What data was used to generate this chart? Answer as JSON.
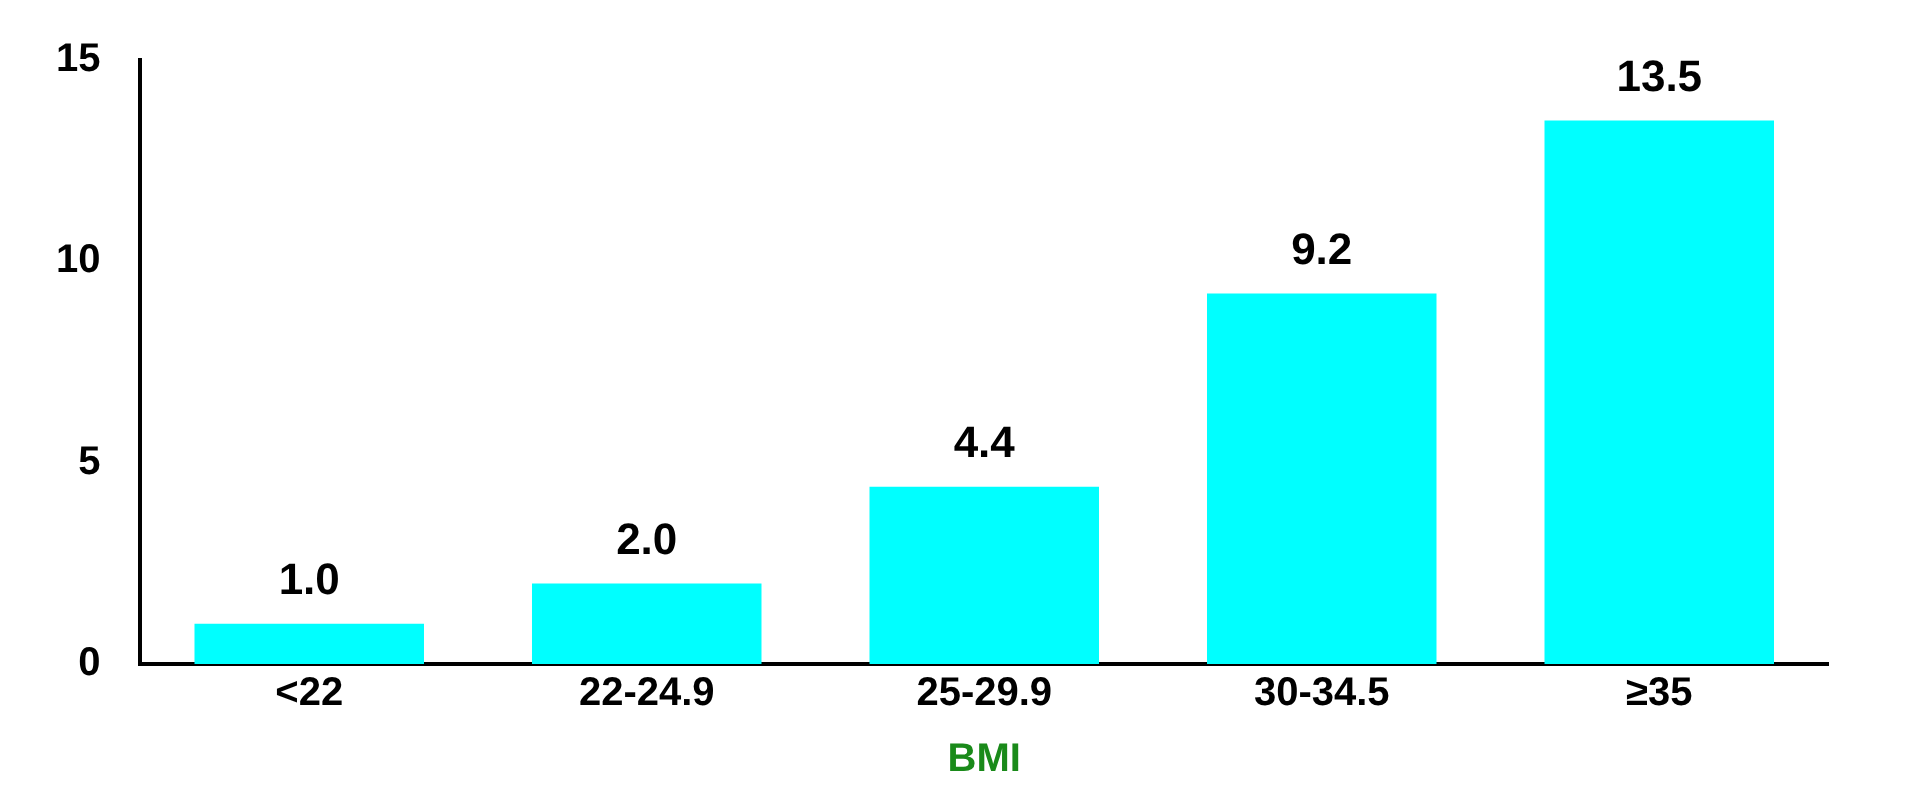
{
  "chart_data": {
    "type": "bar",
    "xlabel": "BMI",
    "categories": [
      "<22",
      "22-24.9",
      "25-29.9",
      "30-34.5",
      "≥35"
    ],
    "values": [
      1.0,
      2.0,
      4.4,
      9.2,
      13.5
    ],
    "value_labels": [
      "1.0",
      "2.0",
      "4.4",
      "9.2",
      "13.5"
    ],
    "color": "#00ffff",
    "ylim": [
      0,
      15
    ],
    "yticks": [
      0,
      5,
      10,
      15
    ],
    "grid": false,
    "legend": false
  }
}
